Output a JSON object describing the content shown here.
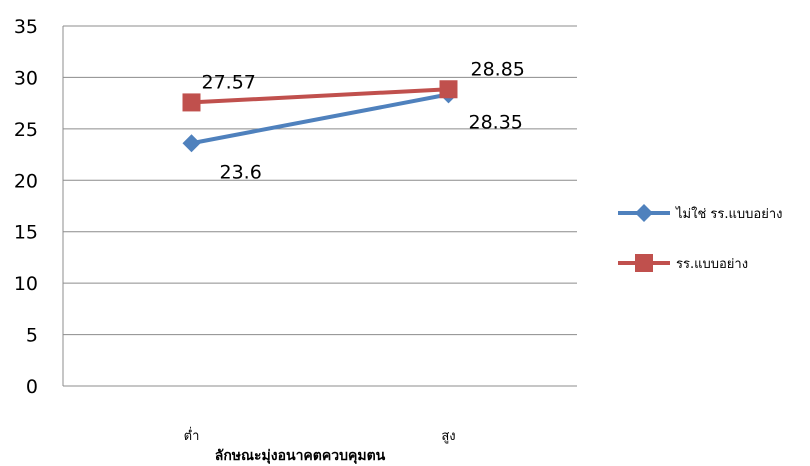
{
  "chart_data": {
    "type": "line",
    "categories": [
      "ต่ำ",
      "สูง"
    ],
    "series": [
      {
        "name": "ไม่ใช่ รร.แบบอย่าง",
        "values": [
          23.6,
          28.35
        ],
        "color": "#4F81BD",
        "marker": "diamond"
      },
      {
        "name": "รร.แบบอย่าง",
        "values": [
          27.57,
          28.85
        ],
        "color": "#C0504D",
        "marker": "square"
      }
    ],
    "data_labels": [
      [
        "23.6",
        "28.35"
      ],
      [
        "27.57",
        "28.85"
      ]
    ],
    "xlabel": "ลักษณะมุ่งอนาคตควบคุมตน",
    "ylabel": "",
    "ylim": [
      0,
      35
    ],
    "yticks": [
      0,
      5,
      10,
      15,
      20,
      25,
      30,
      35
    ],
    "grid": true,
    "legend": "right"
  }
}
